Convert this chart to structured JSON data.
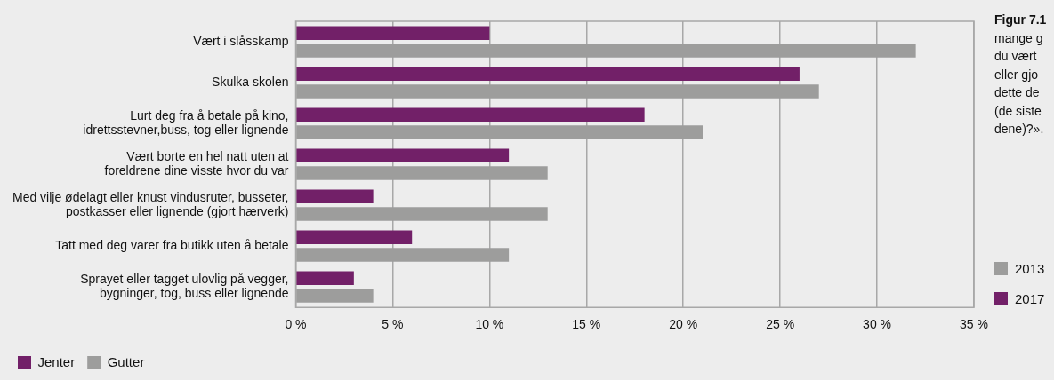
{
  "chart_data": {
    "type": "bar",
    "orientation": "horizontal",
    "categories": [
      "Vært i slåsskamp",
      "Skulka skolen",
      "Lurt deg fra å betale på kino,\nidrettsstevner,buss, tog eller lignende",
      "Vært borte en hel natt uten at\nforeldrene dine visste hvor du var",
      "Med vilje ødelagt eller knust vindusruter, busseter,\npostkasser eller lignende (gjort hærverk)",
      "Tatt med deg varer fra butikk uten å betale",
      "Sprayet eller tagget ulovlig på vegger,\nbygninger, tog, buss eller lignende"
    ],
    "series": [
      {
        "name": "Jenter",
        "color": "#722068",
        "values": [
          10,
          26,
          18,
          11,
          4,
          6,
          3
        ]
      },
      {
        "name": "Gutter",
        "color": "#9d9d9c",
        "values": [
          32,
          27,
          21,
          13,
          13,
          11,
          4
        ]
      }
    ],
    "xlim": [
      0,
      35
    ],
    "xticks": [
      {
        "value": 0,
        "label": "0 %"
      },
      {
        "value": 5,
        "label": "5 %"
      },
      {
        "value": 10,
        "label": "10 %"
      },
      {
        "value": 15,
        "label": "15 %"
      },
      {
        "value": 20,
        "label": "20 %"
      },
      {
        "value": 25,
        "label": "25 %"
      },
      {
        "value": 30,
        "label": "30 %"
      },
      {
        "value": 35,
        "label": "35 %"
      }
    ],
    "grid": "x",
    "legend": "bottom",
    "annotations": [
      "Figur 7.1",
      "mange g",
      "du vært",
      "eller gjo",
      "dette de",
      "(de siste",
      "dene)?».",
      "2013",
      "2017"
    ]
  }
}
